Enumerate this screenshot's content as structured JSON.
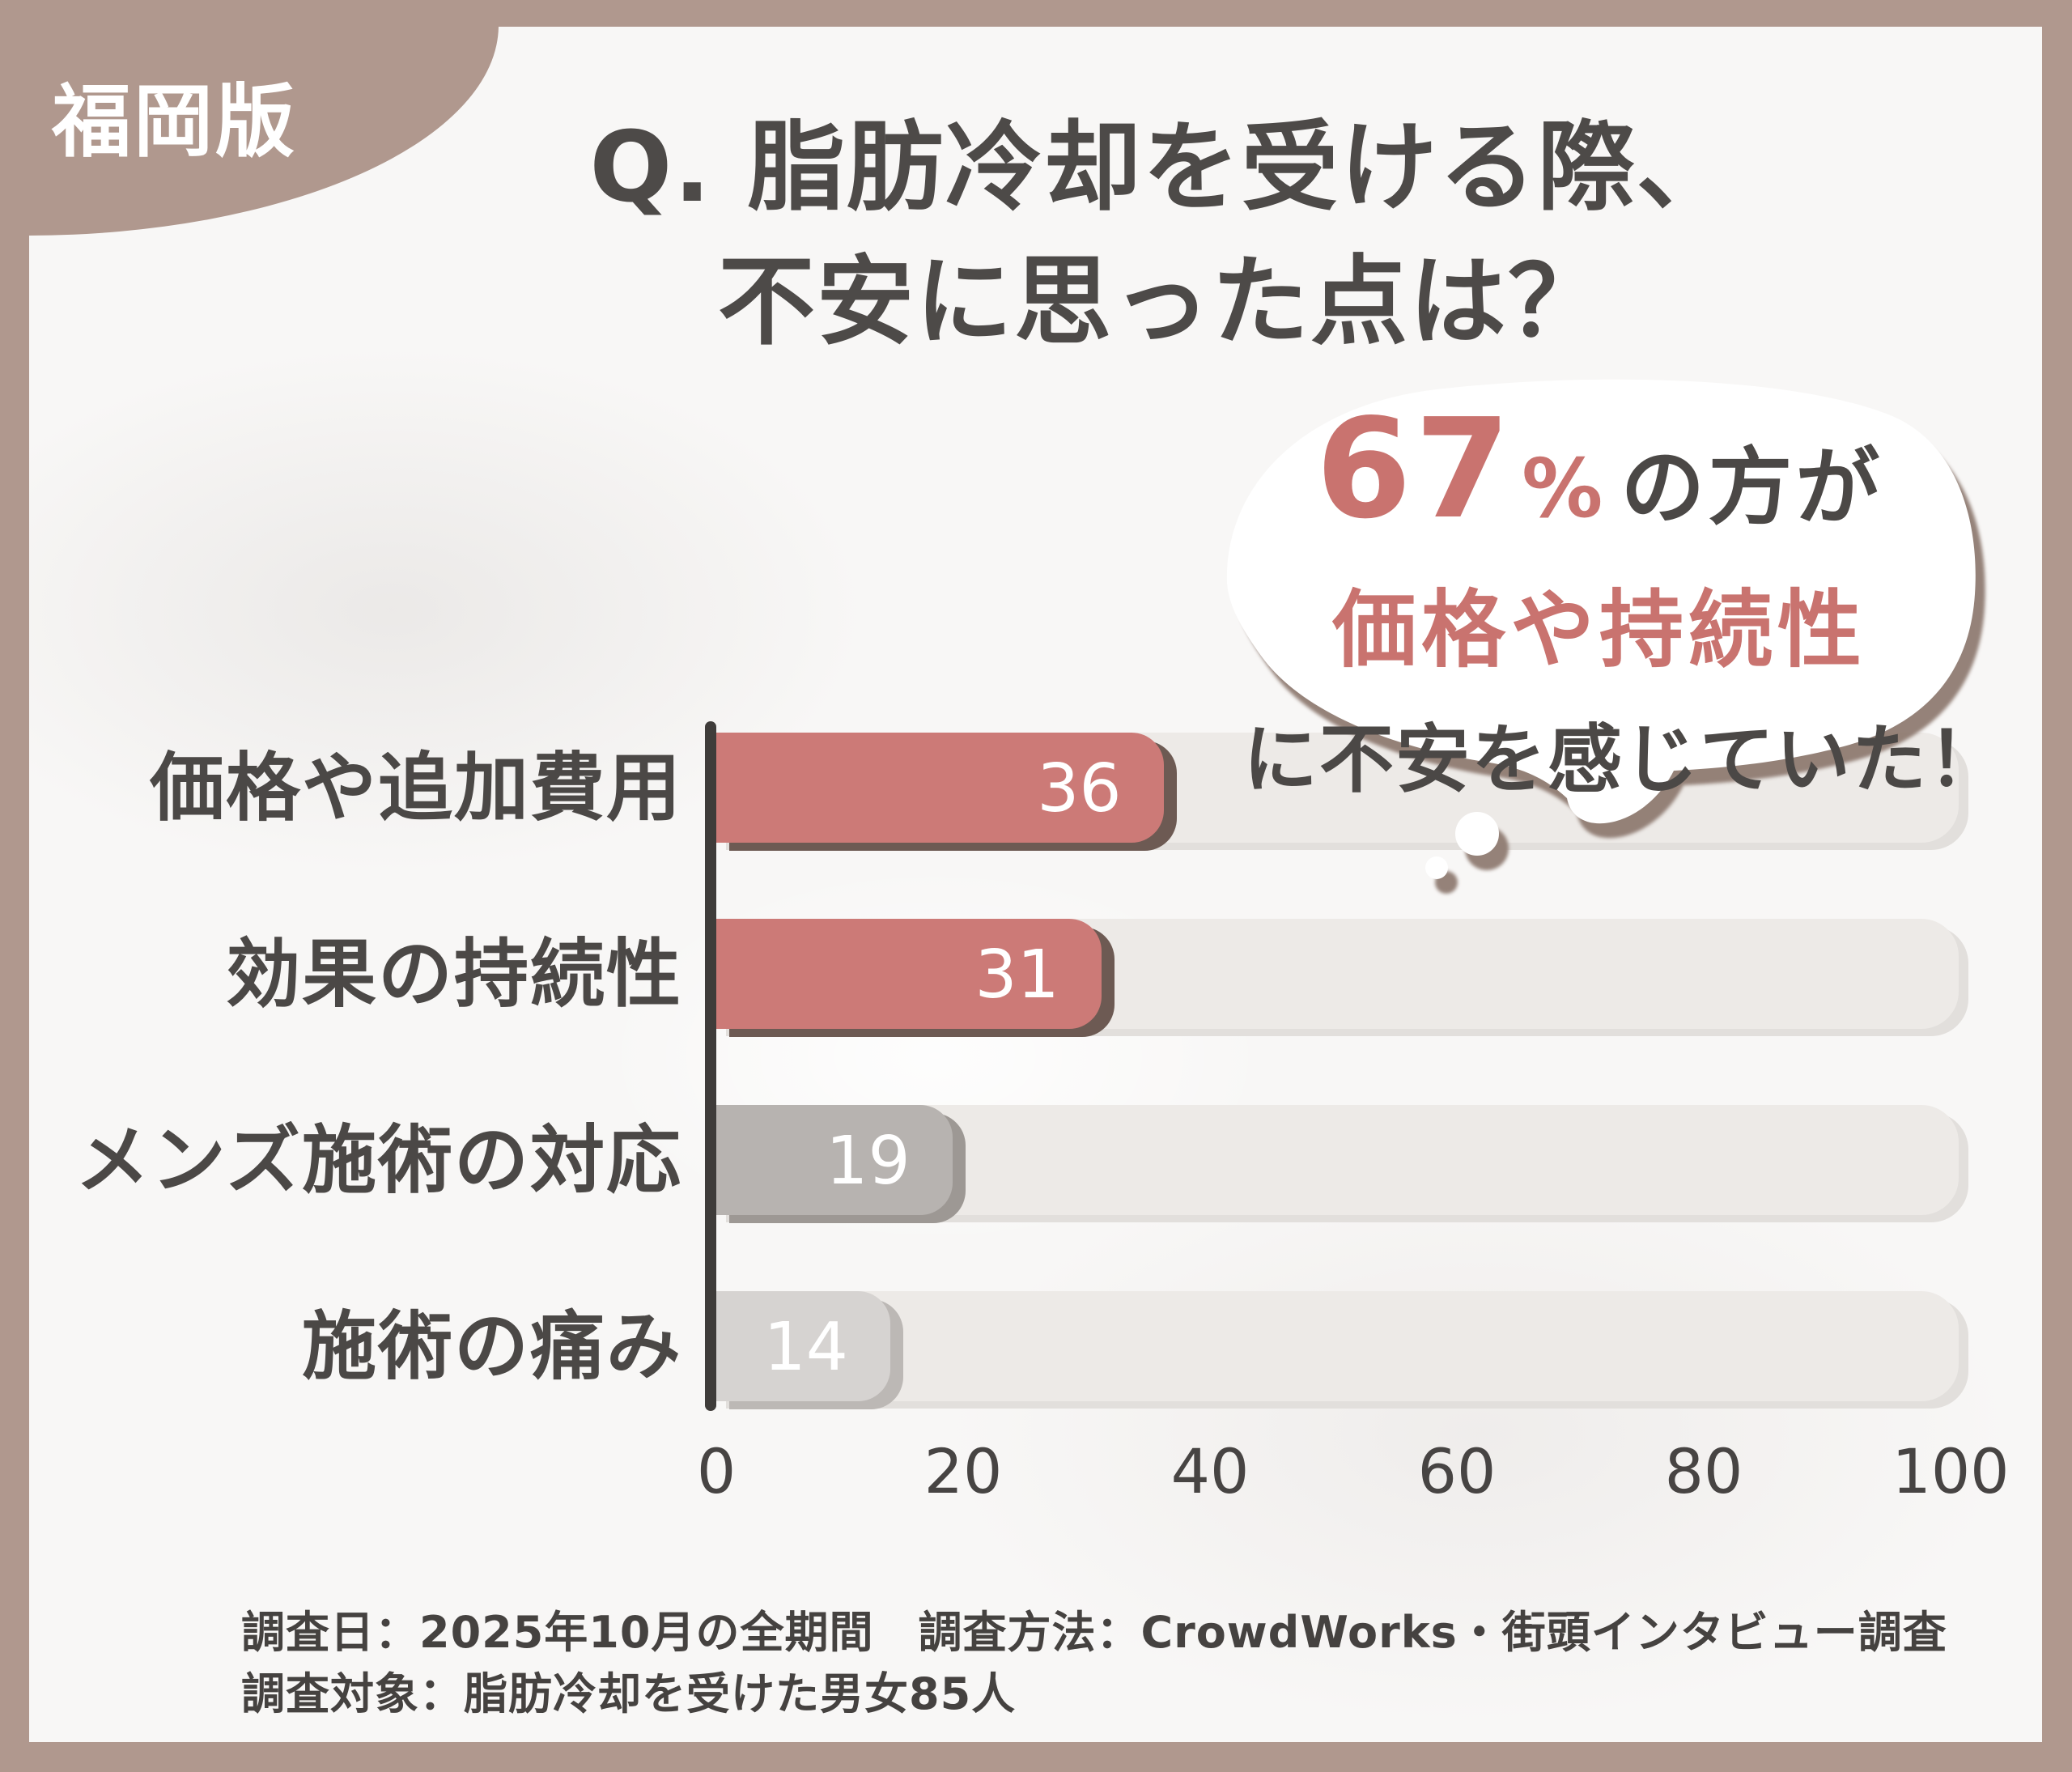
{
  "badge": {
    "label": "福岡版"
  },
  "header": {
    "title_line1": "Q. 脂肪冷却を受ける際、",
    "title_line2": "不安に思った点は？"
  },
  "bubble": {
    "stat_value": "67",
    "stat_unit": "%",
    "stat_suffix": "の方が",
    "highlight": "価格や持続性",
    "conclusion": "に不安を感じていた！"
  },
  "chart_data": {
    "type": "bar",
    "orientation": "horizontal",
    "title": "Q. 脂肪冷却を受ける際、不安に思った点は？",
    "categories": [
      "価格や追加費用",
      "効果の持続性",
      "メンズ施術の対応",
      "施術の痛み"
    ],
    "values": [
      36,
      31,
      19,
      14
    ],
    "xlim": [
      0,
      100
    ],
    "x_ticks": [
      "0",
      "20",
      "40",
      "60",
      "80",
      "100"
    ],
    "bar_colors": [
      "#cc7a77",
      "#cc7a77",
      "#b7b3b0",
      "#d6d3d1"
    ],
    "bar_shadow_colors": [
      "#6d5a53",
      "#6d5a53",
      "#9d9894",
      "#bcb8b5"
    ],
    "track_color": "#edeae7",
    "grid": false,
    "legend": null
  },
  "footer": {
    "line1": "調査日：2025年10月の全期間　調査方法：CrowdWorks・街頭インタビュー調査",
    "line2": "調査対象：脂肪冷却を受けた男女85人"
  },
  "colors": {
    "frame": "#b0988e",
    "background": "#f8f7f6",
    "text_dark": "#4b4846",
    "accent_pink": "#c9736f",
    "axis": "#3f3c3a",
    "value_text": "#ffffff"
  }
}
